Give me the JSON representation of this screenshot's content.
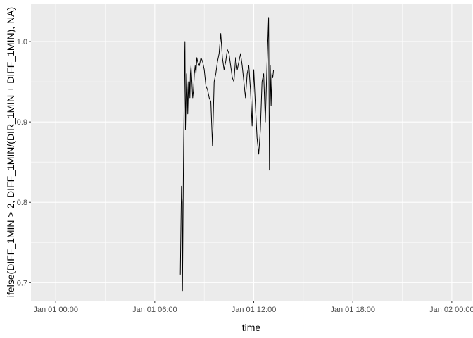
{
  "chart_data": {
    "type": "line",
    "xlabel": "time",
    "ylabel": "ifelse(DIFF_1MIN > 2, DIFF_1MIN/(DIR_1MIN + DIFF_1MIN), NA)",
    "xlim": [
      -1.5,
      25.2
    ],
    "ylim": [
      0.6775,
      1.0465
    ],
    "x_ticks": [
      {
        "value": 0,
        "label": "Jan 01 00:00"
      },
      {
        "value": 6,
        "label": "Jan 01 06:00"
      },
      {
        "value": 12,
        "label": "Jan 01 12:00"
      },
      {
        "value": 18,
        "label": "Jan 01 18:00"
      },
      {
        "value": 24,
        "label": "Jan 02 00:00"
      }
    ],
    "x_minor_ticks": [
      3,
      9,
      15,
      21
    ],
    "y_ticks": [
      {
        "value": 0.7,
        "label": "0.7"
      },
      {
        "value": 0.8,
        "label": "0.8"
      },
      {
        "value": 0.9,
        "label": "0.9"
      },
      {
        "value": 1.0,
        "label": "1.0"
      }
    ],
    "y_minor_ticks": [
      0.75,
      0.85,
      0.95
    ],
    "grid": true,
    "colors": {
      "panel": "#ebebeb",
      "grid": "#ffffff",
      "line": "#000000"
    },
    "series": [
      {
        "x": [
          7.55,
          7.58,
          7.62,
          7.66,
          7.68,
          7.7,
          7.72,
          7.75,
          7.78,
          7.8,
          7.83,
          7.86,
          7.9,
          7.93,
          7.97,
          8.0,
          8.05,
          8.1,
          8.13,
          8.16,
          8.2,
          8.25,
          8.3,
          8.35,
          8.4,
          8.45,
          8.5,
          8.55,
          8.6,
          8.7,
          8.8,
          8.9,
          9.0,
          9.1,
          9.2,
          9.3,
          9.4,
          9.5,
          9.6,
          9.7,
          9.8,
          9.9,
          10.0,
          10.1,
          10.2,
          10.3,
          10.4,
          10.5,
          10.6,
          10.7,
          10.8,
          10.9,
          11.0,
          11.1,
          11.2,
          11.3,
          11.4,
          11.5,
          11.6,
          11.7,
          11.8,
          11.9,
          12.0,
          12.1,
          12.2,
          12.3,
          12.4,
          12.5,
          12.6,
          12.7,
          12.8,
          12.9,
          12.95,
          13.0,
          13.05,
          13.1,
          13.15,
          13.2
        ],
        "y": [
          0.71,
          0.76,
          0.82,
          0.8,
          0.69,
          0.74,
          0.8,
          0.87,
          0.92,
          0.96,
          1.0,
          0.89,
          0.93,
          0.96,
          0.94,
          0.91,
          0.95,
          0.95,
          0.93,
          0.96,
          0.97,
          0.95,
          0.93,
          0.94,
          0.96,
          0.97,
          0.96,
          0.98,
          0.975,
          0.97,
          0.98,
          0.975,
          0.965,
          0.945,
          0.94,
          0.93,
          0.925,
          0.87,
          0.95,
          0.96,
          0.975,
          0.985,
          1.01,
          0.98,
          0.965,
          0.975,
          0.99,
          0.985,
          0.97,
          0.955,
          0.95,
          0.98,
          0.965,
          0.975,
          0.985,
          0.97,
          0.95,
          0.93,
          0.96,
          0.97,
          0.94,
          0.895,
          0.965,
          0.92,
          0.88,
          0.86,
          0.89,
          0.95,
          0.96,
          0.9,
          0.97,
          1.03,
          0.84,
          0.97,
          0.92,
          0.96,
          0.955,
          0.965
        ]
      }
    ]
  }
}
